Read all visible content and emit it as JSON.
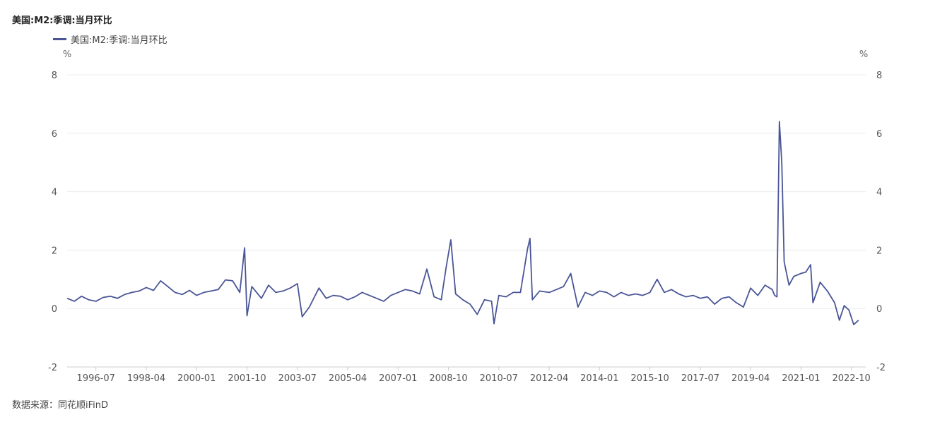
{
  "title": "美国:M2:季调:当月环比",
  "source": "数据来源：同花顺iFinD",
  "colors": {
    "series": "#4a5597",
    "grid": "#ececec",
    "axis": "#cccccc"
  },
  "chart_data": {
    "type": "line",
    "title": "美国:M2:季调:当月环比",
    "legend_position": "top-left",
    "grid": true,
    "y_unit_left": "%",
    "y_unit_right": "%",
    "ylim": [
      -2,
      8
    ],
    "yticks": [
      8,
      6,
      4,
      2,
      0,
      -2
    ],
    "xlim": [
      "1995-07",
      "2023-04"
    ],
    "xticks": [
      "1996-07",
      "1998-04",
      "2000-01",
      "2001-10",
      "2003-07",
      "2005-04",
      "2007-01",
      "2008-10",
      "2010-07",
      "2012-04",
      "2014-01",
      "2015-10",
      "2017-07",
      "2019-04",
      "2021-01",
      "2022-10"
    ],
    "series": [
      {
        "name": "美国:M2:季调:当月环比",
        "points": [
          [
            "1995-07",
            0.35
          ],
          [
            "1995-10",
            0.25
          ],
          [
            "1996-01",
            0.42
          ],
          [
            "1996-04",
            0.3
          ],
          [
            "1996-07",
            0.25
          ],
          [
            "1996-10",
            0.38
          ],
          [
            "1997-01",
            0.42
          ],
          [
            "1997-04",
            0.35
          ],
          [
            "1997-07",
            0.48
          ],
          [
            "1997-10",
            0.55
          ],
          [
            "1998-01",
            0.6
          ],
          [
            "1998-04",
            0.72
          ],
          [
            "1998-07",
            0.62
          ],
          [
            "1998-10",
            0.95
          ],
          [
            "1999-01",
            0.75
          ],
          [
            "1999-04",
            0.55
          ],
          [
            "1999-07",
            0.48
          ],
          [
            "1999-10",
            0.62
          ],
          [
            "2000-01",
            0.45
          ],
          [
            "2000-04",
            0.55
          ],
          [
            "2000-07",
            0.6
          ],
          [
            "2000-10",
            0.65
          ],
          [
            "2001-01",
            0.98
          ],
          [
            "2001-04",
            0.95
          ],
          [
            "2001-07",
            0.55
          ],
          [
            "2001-09",
            2.08
          ],
          [
            "2001-10",
            -0.25
          ],
          [
            "2001-12",
            0.75
          ],
          [
            "2002-04",
            0.35
          ],
          [
            "2002-07",
            0.8
          ],
          [
            "2002-10",
            0.55
          ],
          [
            "2003-01",
            0.6
          ],
          [
            "2003-04",
            0.7
          ],
          [
            "2003-07",
            0.85
          ],
          [
            "2003-09",
            -0.28
          ],
          [
            "2003-12",
            0.05
          ],
          [
            "2004-04",
            0.7
          ],
          [
            "2004-07",
            0.35
          ],
          [
            "2004-10",
            0.45
          ],
          [
            "2005-01",
            0.42
          ],
          [
            "2005-04",
            0.3
          ],
          [
            "2005-07",
            0.4
          ],
          [
            "2005-10",
            0.55
          ],
          [
            "2006-01",
            0.45
          ],
          [
            "2006-04",
            0.35
          ],
          [
            "2006-07",
            0.25
          ],
          [
            "2006-10",
            0.45
          ],
          [
            "2007-01",
            0.55
          ],
          [
            "2007-04",
            0.65
          ],
          [
            "2007-07",
            0.6
          ],
          [
            "2007-10",
            0.5
          ],
          [
            "2008-01",
            1.35
          ],
          [
            "2008-04",
            0.4
          ],
          [
            "2008-07",
            0.3
          ],
          [
            "2008-09",
            1.4
          ],
          [
            "2008-11",
            2.35
          ],
          [
            "2009-01",
            0.5
          ],
          [
            "2009-04",
            0.3
          ],
          [
            "2009-07",
            0.15
          ],
          [
            "2009-10",
            -0.2
          ],
          [
            "2010-01",
            0.3
          ],
          [
            "2010-04",
            0.25
          ],
          [
            "2010-05",
            -0.52
          ],
          [
            "2010-07",
            0.45
          ],
          [
            "2010-10",
            0.4
          ],
          [
            "2011-01",
            0.55
          ],
          [
            "2011-04",
            0.55
          ],
          [
            "2011-07",
            2.05
          ],
          [
            "2011-08",
            2.4
          ],
          [
            "2011-09",
            0.3
          ],
          [
            "2011-12",
            0.6
          ],
          [
            "2012-04",
            0.55
          ],
          [
            "2012-07",
            0.65
          ],
          [
            "2012-10",
            0.75
          ],
          [
            "2013-01",
            1.2
          ],
          [
            "2013-04",
            0.05
          ],
          [
            "2013-07",
            0.55
          ],
          [
            "2013-10",
            0.45
          ],
          [
            "2014-01",
            0.6
          ],
          [
            "2014-04",
            0.55
          ],
          [
            "2014-07",
            0.4
          ],
          [
            "2014-10",
            0.55
          ],
          [
            "2015-01",
            0.45
          ],
          [
            "2015-04",
            0.5
          ],
          [
            "2015-07",
            0.45
          ],
          [
            "2015-10",
            0.55
          ],
          [
            "2016-01",
            1.0
          ],
          [
            "2016-04",
            0.55
          ],
          [
            "2016-07",
            0.65
          ],
          [
            "2016-10",
            0.5
          ],
          [
            "2017-01",
            0.4
          ],
          [
            "2017-04",
            0.45
          ],
          [
            "2017-07",
            0.35
          ],
          [
            "2017-10",
            0.4
          ],
          [
            "2018-01",
            0.15
          ],
          [
            "2018-04",
            0.35
          ],
          [
            "2018-07",
            0.4
          ],
          [
            "2018-10",
            0.2
          ],
          [
            "2019-01",
            0.05
          ],
          [
            "2019-04",
            0.7
          ],
          [
            "2019-07",
            0.45
          ],
          [
            "2019-10",
            0.8
          ],
          [
            "2020-01",
            0.65
          ],
          [
            "2020-02",
            0.45
          ],
          [
            "2020-03",
            0.4
          ],
          [
            "2020-04",
            6.4
          ],
          [
            "2020-05",
            5.0
          ],
          [
            "2020-06",
            1.6
          ],
          [
            "2020-08",
            0.8
          ],
          [
            "2020-10",
            1.1
          ],
          [
            "2021-01",
            1.2
          ],
          [
            "2021-03",
            1.25
          ],
          [
            "2021-05",
            1.5
          ],
          [
            "2021-06",
            0.2
          ],
          [
            "2021-09",
            0.9
          ],
          [
            "2021-12",
            0.6
          ],
          [
            "2022-03",
            0.2
          ],
          [
            "2022-05",
            -0.4
          ],
          [
            "2022-07",
            0.1
          ],
          [
            "2022-09",
            -0.05
          ],
          [
            "2022-11",
            -0.55
          ],
          [
            "2023-01",
            -0.4
          ]
        ]
      }
    ]
  }
}
